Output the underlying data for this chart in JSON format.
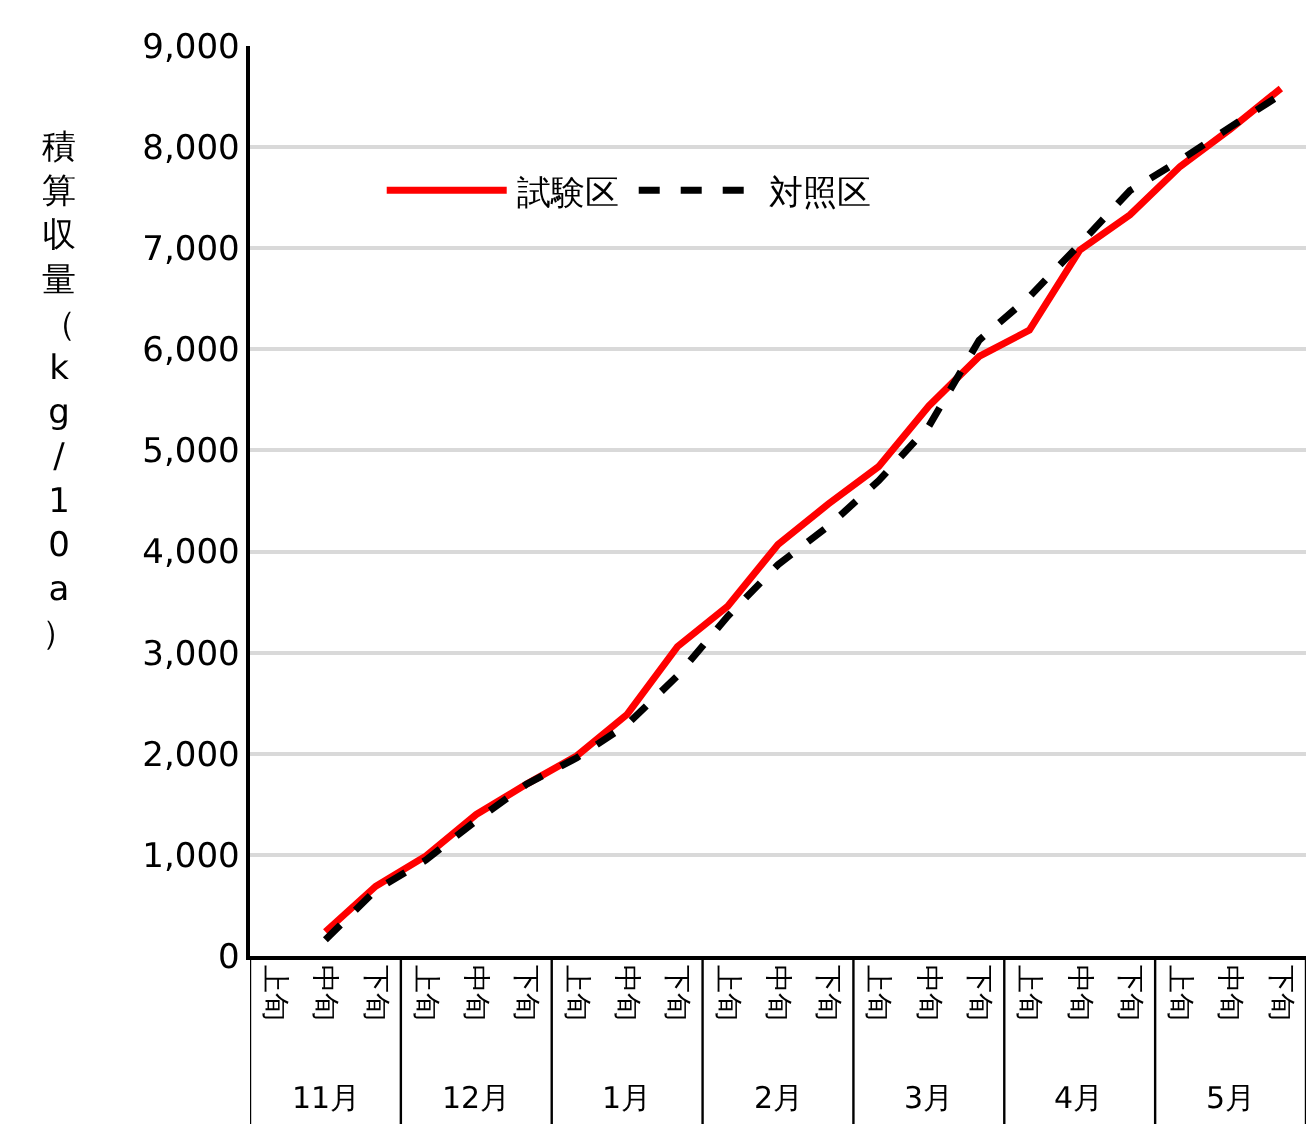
{
  "chart_data": {
    "type": "line",
    "ylabel": "積算収量（kg/10a）",
    "categories": [
      "上旬",
      "中旬",
      "下旬",
      "上旬",
      "中旬",
      "下旬",
      "上旬",
      "中旬",
      "下旬",
      "上旬",
      "中旬",
      "下旬",
      "上旬",
      "中旬",
      "下旬",
      "上旬",
      "中旬",
      "下旬",
      "上旬",
      "中旬",
      "下旬"
    ],
    "annotations": [
      "11月",
      "12月",
      "1月",
      "2月",
      "3月",
      "4月",
      "5月"
    ],
    "series": [
      {
        "name": "試験区",
        "color": "#ff0000",
        "line_style": "solid",
        "values": [
          null,
          240,
          690,
          990,
          1400,
          1700,
          1980,
          2390,
          3060,
          3460,
          4070,
          4470,
          4840,
          5440,
          5930,
          6190,
          6980,
          7330,
          7810,
          8180,
          8580
        ]
      },
      {
        "name": "対照区",
        "color": "#000000",
        "line_style": "dashed",
        "values": [
          null,
          160,
          650,
          950,
          1340,
          1700,
          1960,
          2290,
          2770,
          3360,
          3870,
          4250,
          4700,
          5240,
          6090,
          6520,
          7040,
          7570,
          7870,
          8200,
          8520
        ]
      }
    ],
    "ylim": [
      0,
      9000
    ],
    "yticks": [
      0,
      {
        "value": 1000,
        "label": "1,000"
      },
      {
        "value": 2000,
        "label": "2,000"
      },
      {
        "value": 3000,
        "label": "3,000"
      },
      {
        "value": 4000,
        "label": "4,000"
      },
      {
        "value": 5000,
        "label": "5,000"
      },
      {
        "value": 6000,
        "label": "6,000"
      },
      {
        "value": 7000,
        "label": "7,000"
      },
      {
        "value": 8000,
        "label": "8,000"
      },
      {
        "value": 9000,
        "label": "9,000"
      }
    ],
    "grid": "y",
    "legend": "top left",
    "marker": "none"
  }
}
